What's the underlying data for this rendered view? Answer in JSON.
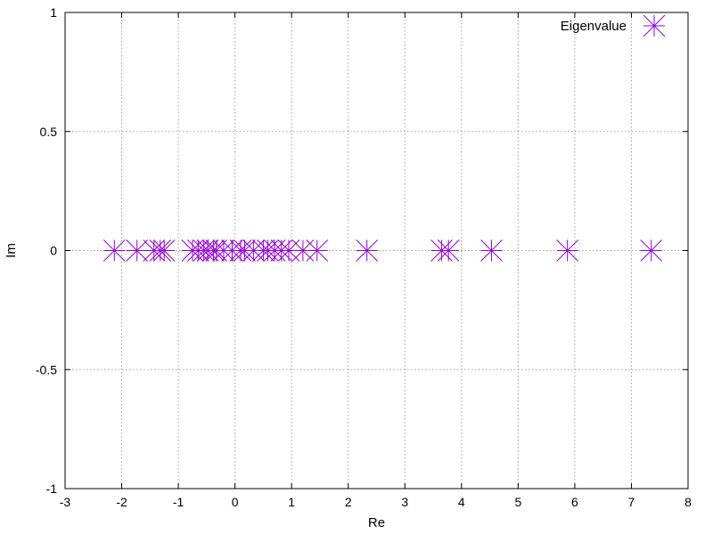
{
  "chart_data": {
    "type": "scatter",
    "xlabel": "Re",
    "ylabel": "Im",
    "xlim": [
      -3,
      8
    ],
    "ylim": [
      -1,
      1
    ],
    "xticks": [
      -3,
      -2,
      -1,
      0,
      1,
      2,
      3,
      4,
      5,
      6,
      7,
      8
    ],
    "yticks": [
      -1,
      -0.5,
      0,
      0.5,
      1
    ],
    "grid": true,
    "legend_position": "top-right",
    "marker_color": "#9400d3",
    "series": [
      {
        "name": "Eigenvalue",
        "points": [
          [
            -2.13,
            0
          ],
          [
            -1.73,
            0
          ],
          [
            -1.43,
            0
          ],
          [
            -1.32,
            0
          ],
          [
            -1.25,
            0
          ],
          [
            -0.75,
            0
          ],
          [
            -0.65,
            0
          ],
          [
            -0.55,
            0
          ],
          [
            -0.48,
            0
          ],
          [
            -0.38,
            0
          ],
          [
            -0.33,
            0
          ],
          [
            -0.2,
            0
          ],
          [
            -0.05,
            0
          ],
          [
            0.1,
            0
          ],
          [
            0.17,
            0
          ],
          [
            0.33,
            0
          ],
          [
            0.5,
            0
          ],
          [
            0.58,
            0
          ],
          [
            0.7,
            0
          ],
          [
            0.82,
            0
          ],
          [
            0.95,
            0
          ],
          [
            1.2,
            0
          ],
          [
            1.45,
            0
          ],
          [
            2.33,
            0
          ],
          [
            3.65,
            0
          ],
          [
            3.77,
            0
          ],
          [
            4.53,
            0
          ],
          [
            5.87,
            0
          ],
          [
            7.35,
            0
          ]
        ]
      }
    ]
  }
}
